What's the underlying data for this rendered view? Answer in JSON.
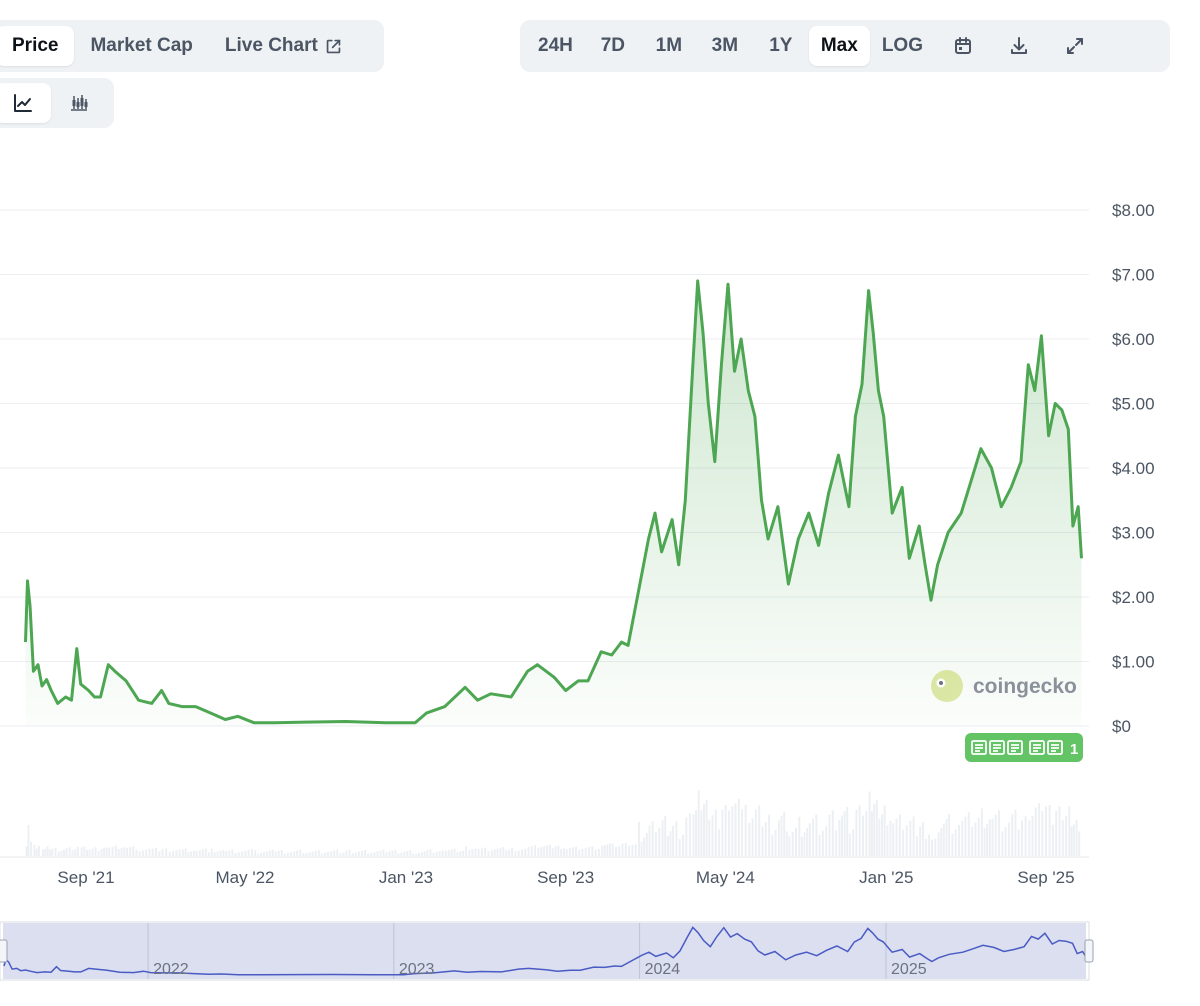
{
  "tabs": {
    "price": "Price",
    "market_cap": "Market Cap",
    "live_chart": "Live Chart"
  },
  "ranges": [
    "24H",
    "7D",
    "1M",
    "3M",
    "1Y",
    "Max",
    "LOG"
  ],
  "active_range": "Max",
  "watermark": "coingecko",
  "news_badge": "1",
  "colors": {
    "line": "#4da651",
    "navigator_line": "#4a5bc4",
    "active_tab_bg": "#ffffff",
    "toolbar_bg": "#eff2f5"
  },
  "chart_data": {
    "type": "area",
    "title": "",
    "xlabel": "",
    "ylabel": "",
    "ylim": [
      0,
      8
    ],
    "y_ticks": [
      "$8.00",
      "$7.00",
      "$6.00",
      "$5.00",
      "$4.00",
      "$3.00",
      "$2.00",
      "$1.00",
      "$0"
    ],
    "y_tick_values": [
      8,
      7,
      6,
      5,
      4,
      3,
      2,
      1,
      0
    ],
    "x_ticks": [
      "Sep '21",
      "May '22",
      "Jan '23",
      "Sep '23",
      "May '24",
      "Jan '25",
      "Sep '25"
    ],
    "x_tick_dates": [
      "2021-09-01",
      "2022-05-01",
      "2023-01-01",
      "2023-09-01",
      "2024-05-01",
      "2025-01-01",
      "2025-09-01"
    ],
    "navigator_ticks": [
      "2022",
      "2023",
      "2024",
      "2025"
    ],
    "navigator_tick_dates": [
      "2022-01-01",
      "2023-01-01",
      "2024-01-01",
      "2025-01-01"
    ],
    "grid": true,
    "legend": "none",
    "series": [
      {
        "points": [
          [
            "2021-06-01",
            1.3
          ],
          [
            "2021-06-04",
            2.25
          ],
          [
            "2021-06-08",
            1.85
          ],
          [
            "2021-06-13",
            0.85
          ],
          [
            "2021-06-20",
            0.95
          ],
          [
            "2021-06-26",
            0.62
          ],
          [
            "2021-07-03",
            0.72
          ],
          [
            "2021-07-10",
            0.55
          ],
          [
            "2021-07-20",
            0.35
          ],
          [
            "2021-08-01",
            0.45
          ],
          [
            "2021-08-10",
            0.4
          ],
          [
            "2021-08-18",
            1.2
          ],
          [
            "2021-08-24",
            0.65
          ],
          [
            "2021-09-05",
            0.55
          ],
          [
            "2021-09-14",
            0.45
          ],
          [
            "2021-09-23",
            0.45
          ],
          [
            "2021-10-05",
            0.95
          ],
          [
            "2021-10-15",
            0.85
          ],
          [
            "2021-11-01",
            0.7
          ],
          [
            "2021-11-20",
            0.4
          ],
          [
            "2021-12-10",
            0.35
          ],
          [
            "2021-12-25",
            0.55
          ],
          [
            "2022-01-05",
            0.35
          ],
          [
            "2022-01-25",
            0.3
          ],
          [
            "2022-02-15",
            0.3
          ],
          [
            "2022-03-10",
            0.2
          ],
          [
            "2022-04-01",
            0.1
          ],
          [
            "2022-04-20",
            0.15
          ],
          [
            "2022-05-15",
            0.05
          ],
          [
            "2022-06-15",
            0.05
          ],
          [
            "2022-08-01",
            0.06
          ],
          [
            "2022-10-01",
            0.07
          ],
          [
            "2022-12-01",
            0.05
          ],
          [
            "2023-01-15",
            0.05
          ],
          [
            "2023-02-01",
            0.2
          ],
          [
            "2023-03-01",
            0.3
          ],
          [
            "2023-04-01",
            0.6
          ],
          [
            "2023-04-20",
            0.4
          ],
          [
            "2023-05-10",
            0.5
          ],
          [
            "2023-06-10",
            0.45
          ],
          [
            "2023-07-05",
            0.85
          ],
          [
            "2023-07-20",
            0.95
          ],
          [
            "2023-08-15",
            0.75
          ],
          [
            "2023-09-01",
            0.55
          ],
          [
            "2023-09-20",
            0.7
          ],
          [
            "2023-10-05",
            0.7
          ],
          [
            "2023-10-25",
            1.15
          ],
          [
            "2023-11-10",
            1.1
          ],
          [
            "2023-11-25",
            1.3
          ],
          [
            "2023-12-05",
            1.25
          ],
          [
            "2023-12-20",
            2.05
          ],
          [
            "2024-01-05",
            2.9
          ],
          [
            "2024-01-15",
            3.3
          ],
          [
            "2024-01-25",
            2.7
          ],
          [
            "2024-02-10",
            3.2
          ],
          [
            "2024-02-20",
            2.5
          ],
          [
            "2024-03-01",
            3.5
          ],
          [
            "2024-03-12",
            5.5
          ],
          [
            "2024-03-20",
            6.9
          ],
          [
            "2024-03-28",
            6.1
          ],
          [
            "2024-04-05",
            5.0
          ],
          [
            "2024-04-15",
            4.1
          ],
          [
            "2024-04-25",
            5.6
          ],
          [
            "2024-05-05",
            6.85
          ],
          [
            "2024-05-15",
            5.5
          ],
          [
            "2024-05-25",
            6.0
          ],
          [
            "2024-06-05",
            5.2
          ],
          [
            "2024-06-15",
            4.8
          ],
          [
            "2024-06-25",
            3.5
          ],
          [
            "2024-07-05",
            2.9
          ],
          [
            "2024-07-20",
            3.4
          ],
          [
            "2024-08-05",
            2.2
          ],
          [
            "2024-08-20",
            2.9
          ],
          [
            "2024-09-05",
            3.3
          ],
          [
            "2024-09-20",
            2.8
          ],
          [
            "2024-10-05",
            3.6
          ],
          [
            "2024-10-20",
            4.2
          ],
          [
            "2024-11-05",
            3.4
          ],
          [
            "2024-11-15",
            4.8
          ],
          [
            "2024-11-25",
            5.3
          ],
          [
            "2024-12-05",
            6.75
          ],
          [
            "2024-12-12",
            6.1
          ],
          [
            "2024-12-20",
            5.2
          ],
          [
            "2024-12-28",
            4.8
          ],
          [
            "2025-01-10",
            3.3
          ],
          [
            "2025-01-25",
            3.7
          ],
          [
            "2025-02-05",
            2.6
          ],
          [
            "2025-02-20",
            3.1
          ],
          [
            "2025-03-01",
            2.5
          ],
          [
            "2025-03-10",
            1.95
          ],
          [
            "2025-03-20",
            2.5
          ],
          [
            "2025-04-05",
            3.0
          ],
          [
            "2025-04-25",
            3.3
          ],
          [
            "2025-05-10",
            3.8
          ],
          [
            "2025-05-25",
            4.3
          ],
          [
            "2025-06-10",
            4.0
          ],
          [
            "2025-06-25",
            3.4
          ],
          [
            "2025-07-10",
            3.7
          ],
          [
            "2025-07-25",
            4.1
          ],
          [
            "2025-08-05",
            5.6
          ],
          [
            "2025-08-15",
            5.2
          ],
          [
            "2025-08-25",
            6.05
          ],
          [
            "2025-09-05",
            4.5
          ],
          [
            "2025-09-15",
            5.0
          ],
          [
            "2025-09-25",
            4.9
          ],
          [
            "2025-10-05",
            4.6
          ],
          [
            "2025-10-12",
            3.1
          ],
          [
            "2025-10-20",
            3.4
          ],
          [
            "2025-10-25",
            2.6
          ]
        ]
      }
    ]
  }
}
